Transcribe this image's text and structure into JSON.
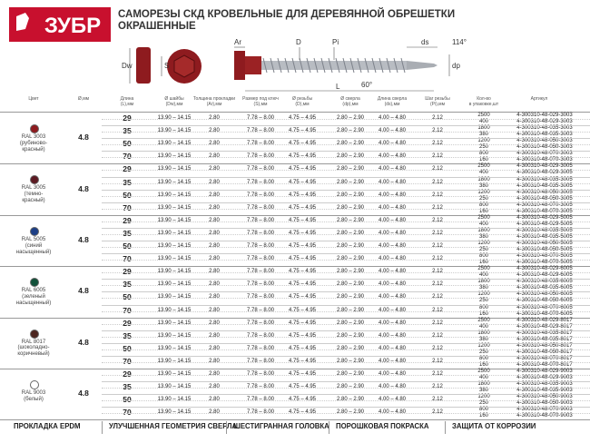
{
  "header": {
    "logo": "ЗУБР",
    "title": "САМОРЕЗЫ СКД КРОВЕЛЬНЫЕ ДЛЯ ДЕРЕВЯННОЙ ОБРЕШЕТКИ\nОКРАШЕННЫЕ"
  },
  "drawing": {
    "labels": [
      "Dw",
      "S",
      "Ar",
      "D",
      "Pi",
      "L",
      "60°",
      "ds",
      "114°",
      "dp"
    ]
  },
  "table": {
    "columns": [
      "Цвет",
      "Ø,мм",
      "Длина\n(L),мм",
      "Ø шайбы\n(Dw),мм",
      "Толщина прокладки\n(Ar),мм",
      "Размер под ключ\n(S),мм",
      "Ø резьбы\n(D),мм",
      "Ø сверла\n(dp),мм",
      "Длина сверла\n(ds),мм",
      "Шаг резьбы\n(Pi),мм",
      "Кол-во\nв упаковке,шт",
      "Артикул"
    ],
    "groups": [
      {
        "name": "RAL 3003\n(рубиново-\nкрасный)",
        "color": "#8e1b1f",
        "diameter": "4.8",
        "suffix": "3003"
      },
      {
        "name": "RAL 3005\n(темно-\nкрасный)",
        "color": "#5c1a22",
        "diameter": "4.8",
        "suffix": "3005"
      },
      {
        "name": "RAL 5005\n(синий\nнасыщенный)",
        "color": "#1d3f86",
        "diameter": "4.8",
        "suffix": "5005"
      },
      {
        "name": "RAL 6005\n(зеленый\nнасыщенный)",
        "color": "#12513a",
        "diameter": "4.8",
        "suffix": "6005"
      },
      {
        "name": "RAL 8017\n(шоколадно-\nкоричневый)",
        "color": "#4d2620",
        "diameter": "4.8",
        "suffix": "8017"
      },
      {
        "name": "RAL 9003\n(белый)",
        "color": "#ffffff",
        "diameter": "4.8",
        "suffix": "9003"
      }
    ],
    "rows": [
      {
        "length": "29",
        "washer": "13.90 – 14.15",
        "gasket": "2.80",
        "wrench": "7.78 – 8.00",
        "thread": "4.75 – 4.95",
        "drill": "2.80 – 2.90",
        "drill_length": "4.00 – 4.80",
        "pitch": "2.12",
        "packs": [
          "2500",
          "400"
        ]
      },
      {
        "length": "35",
        "washer": "13.90 – 14.15",
        "gasket": "2.80",
        "wrench": "7.78 – 8.00",
        "thread": "4.75 – 4.95",
        "drill": "2.80 – 2.90",
        "drill_length": "4.00 – 4.80",
        "pitch": "2.12",
        "packs": [
          "1800",
          "380"
        ]
      },
      {
        "length": "50",
        "washer": "13.90 – 14.15",
        "gasket": "2.80",
        "wrench": "7.78 – 8.00",
        "thread": "4.75 – 4.95",
        "drill": "2.80 – 2.90",
        "drill_length": "4.00 – 4.80",
        "pitch": "2.12",
        "packs": [
          "1200",
          "250"
        ]
      },
      {
        "length": "70",
        "washer": "13.90 – 14.15",
        "gasket": "2.80",
        "wrench": "7.78 – 8.00",
        "thread": "4.75 – 4.95",
        "drill": "2.80 – 2.90",
        "drill_length": "4.00 – 4.80",
        "pitch": "2.12",
        "packs": [
          "800",
          "160"
        ]
      }
    ],
    "articles": [
      [
        "4-300310-48-029-3003",
        "4-300310-48-029-3003",
        "4-300310-48-035-3003",
        "4-300310-48-035-3003",
        "4-300310-48-050-3003",
        "4-300310-48-050-3003",
        "4-300310-48-070-3003",
        "4-300310-48-070-3003"
      ],
      [
        "4-300310-48-029-3005",
        "4-300310-48-029-3005",
        "4-300310-48-035-3005",
        "4-300310-48-035-3005",
        "4-300310-48-050-3005",
        "4-300310-48-050-3005",
        "4-300310-48-070-3005",
        "4-300310-48-070-3005"
      ],
      [
        "4-300310-48-029-5005",
        "4-300310-48-029-5005",
        "4-300310-48-035-5005",
        "4-300310-48-035-5005",
        "4-300310-48-050-5005",
        "4-300310-48-050-5005",
        "4-300310-48-070-5005",
        "4-300310-48-070-5005"
      ],
      [
        "4-300310-48-029-6005",
        "4-300310-48-029-6005",
        "4-300310-48-035-6005",
        "4-300310-48-035-6005",
        "4-300310-48-050-6005",
        "4-300310-48-050-6005",
        "4-300310-48-070-6005",
        "4-300310-48-070-6005"
      ],
      [
        "4-300310-48-029-8017",
        "4-300310-48-029-8017",
        "4-300310-48-035-8017",
        "4-300310-48-035-8017",
        "4-300310-48-050-8017",
        "4-300310-48-050-8017",
        "4-300310-48-070-8017",
        "4-300310-48-070-8017"
      ],
      [
        "4-300310-48-029-9003",
        "4-300310-48-029-9003",
        "4-300310-48-035-9003",
        "4-300310-48-035-9003",
        "4-300310-48-050-9003",
        "4-300310-48-050-9003",
        "4-300310-48-070-9003",
        "4-300310-48-070-9003"
      ]
    ]
  },
  "footer": [
    "ПРОКЛАДКА EPDM",
    "УЛУЧШЕННАЯ ГЕОМЕТРИЯ СВЕРЛА",
    "ШЕСТИГРАННАЯ ГОЛОВКА",
    "ПОРОШКОВАЯ ПОКРАСКА",
    "ЗАЩИТА ОТ КОРРОЗИИ"
  ]
}
